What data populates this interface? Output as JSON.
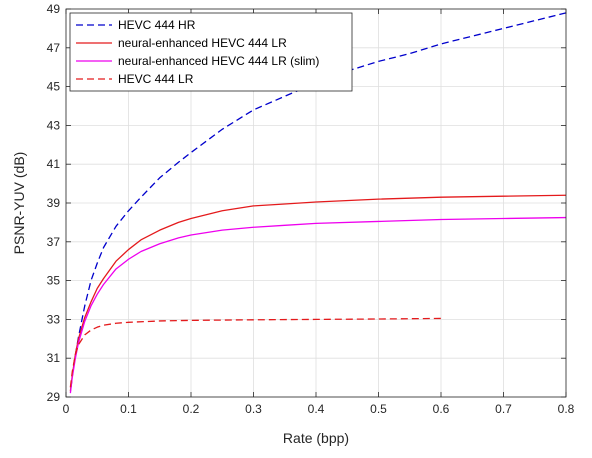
{
  "chart_data": {
    "type": "line",
    "xlabel": "Rate (bpp)",
    "ylabel": "PSNR-YUV (dB)",
    "xlim": [
      0,
      0.8
    ],
    "ylim": [
      29,
      49
    ],
    "x_ticks": [
      0,
      0.1,
      0.2,
      0.3,
      0.4,
      0.5,
      0.6,
      0.7,
      0.8
    ],
    "x_tick_labels": [
      "0",
      "0.1",
      "0.2",
      "0.3",
      "0.4",
      "0.5",
      "0.6",
      "0.7",
      "0.8"
    ],
    "y_ticks": [
      29,
      31,
      33,
      35,
      37,
      39,
      41,
      43,
      45,
      47,
      49
    ],
    "y_tick_labels": [
      "29",
      "31",
      "33",
      "35",
      "37",
      "39",
      "41",
      "43",
      "45",
      "47",
      "49"
    ],
    "grid": true,
    "legend_position": "top-left",
    "series": [
      {
        "name": "HEVC 444 HR",
        "color": "#0000cc",
        "dash": "dashed",
        "x": [
          0.008,
          0.012,
          0.02,
          0.03,
          0.04,
          0.05,
          0.06,
          0.08,
          0.1,
          0.12,
          0.15,
          0.18,
          0.2,
          0.25,
          0.3,
          0.35,
          0.4,
          0.45,
          0.5,
          0.55,
          0.6,
          0.65,
          0.7,
          0.75,
          0.8
        ],
        "y": [
          29.5,
          30.6,
          32.1,
          33.7,
          35.0,
          35.9,
          36.7,
          37.8,
          38.6,
          39.3,
          40.3,
          41.1,
          41.6,
          42.8,
          43.8,
          44.5,
          45.2,
          45.8,
          46.3,
          46.7,
          47.2,
          47.6,
          48.0,
          48.4,
          48.8
        ]
      },
      {
        "name": "neural-enhanced HEVC 444 LR",
        "color": "#e41a1c",
        "dash": "solid",
        "x": [
          0.007,
          0.01,
          0.015,
          0.02,
          0.03,
          0.04,
          0.05,
          0.06,
          0.08,
          0.1,
          0.12,
          0.15,
          0.18,
          0.2,
          0.25,
          0.3,
          0.35,
          0.4,
          0.5,
          0.6,
          0.7,
          0.8
        ],
        "y": [
          29.3,
          30.1,
          31.2,
          32.0,
          33.1,
          33.9,
          34.6,
          35.1,
          36.0,
          36.6,
          37.1,
          37.6,
          38.0,
          38.2,
          38.6,
          38.85,
          38.95,
          39.05,
          39.2,
          39.3,
          39.35,
          39.4
        ]
      },
      {
        "name": "neural-enhanced HEVC 444 LR (slim)",
        "color": "#ee00ee",
        "dash": "solid",
        "x": [
          0.007,
          0.01,
          0.015,
          0.02,
          0.03,
          0.04,
          0.05,
          0.06,
          0.08,
          0.1,
          0.12,
          0.15,
          0.18,
          0.2,
          0.25,
          0.3,
          0.35,
          0.4,
          0.5,
          0.6,
          0.7,
          0.8
        ],
        "y": [
          29.2,
          30.0,
          31.0,
          31.8,
          32.9,
          33.7,
          34.3,
          34.8,
          35.6,
          36.1,
          36.5,
          36.9,
          37.2,
          37.35,
          37.6,
          37.75,
          37.85,
          37.95,
          38.05,
          38.15,
          38.2,
          38.25
        ]
      },
      {
        "name": "HEVC 444 LR",
        "color": "#e41a1c",
        "dash": "dashed",
        "x": [
          0.007,
          0.01,
          0.015,
          0.02,
          0.03,
          0.04,
          0.05,
          0.06,
          0.08,
          0.1,
          0.15,
          0.2,
          0.3,
          0.4,
          0.5,
          0.6
        ],
        "y": [
          29.5,
          30.3,
          31.2,
          31.7,
          32.2,
          32.45,
          32.6,
          32.7,
          32.8,
          32.85,
          32.92,
          32.95,
          32.98,
          33.0,
          33.02,
          33.05
        ]
      }
    ]
  }
}
